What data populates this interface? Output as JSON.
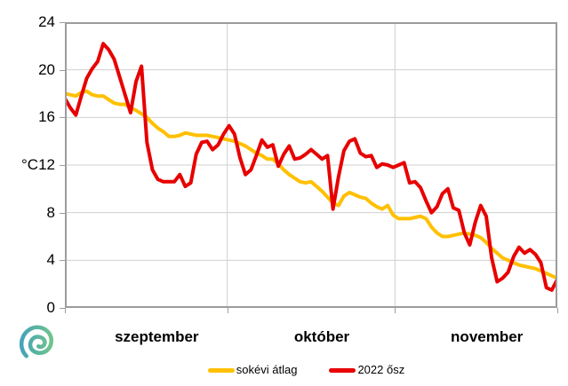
{
  "chart_data": {
    "type": "line",
    "title": "",
    "xlabel": "",
    "ylabel": "°C",
    "ylim": [
      0,
      24
    ],
    "yticks": [
      0,
      4,
      8,
      12,
      16,
      20,
      24
    ],
    "grid": true,
    "legend_position": "bottom-center",
    "x_axis": {
      "months": [
        "szeptember",
        "október",
        "november"
      ],
      "month_days": [
        30,
        31,
        30
      ]
    },
    "series": [
      {
        "name": "sokévi átlag",
        "color": "#FFC000",
        "values": [
          18.0,
          17.9,
          17.8,
          18.1,
          18.2,
          17.9,
          17.8,
          17.8,
          17.5,
          17.2,
          17.1,
          17.1,
          16.8,
          16.6,
          16.3,
          16.0,
          15.5,
          15.1,
          14.8,
          14.4,
          14.4,
          14.5,
          14.7,
          14.6,
          14.5,
          14.5,
          14.5,
          14.4,
          14.3,
          14.2,
          14.1,
          14.0,
          13.8,
          13.6,
          13.3,
          13.0,
          12.8,
          12.5,
          12.5,
          12.1,
          11.6,
          11.2,
          10.9,
          10.6,
          10.5,
          10.6,
          10.2,
          9.8,
          9.3,
          8.8,
          8.6,
          9.4,
          9.7,
          9.5,
          9.3,
          9.2,
          8.8,
          8.5,
          8.3,
          8.6,
          7.8,
          7.5,
          7.5,
          7.5,
          7.6,
          7.7,
          7.5,
          6.8,
          6.3,
          6.0,
          6.0,
          6.1,
          6.2,
          6.3,
          6.2,
          6.1,
          5.9,
          5.5,
          5.0,
          4.6,
          4.2,
          4.0,
          3.8,
          3.6,
          3.5,
          3.4,
          3.3,
          3.1,
          2.9,
          2.7,
          2.5
        ]
      },
      {
        "name": "2022 ősz",
        "color": "#E80000",
        "values": [
          17.6,
          16.8,
          16.2,
          17.8,
          19.3,
          20.1,
          20.7,
          22.2,
          21.7,
          20.9,
          19.4,
          17.9,
          16.4,
          19.0,
          20.3,
          13.9,
          11.6,
          10.8,
          10.6,
          10.6,
          10.6,
          11.2,
          10.2,
          10.5,
          12.9,
          13.9,
          14.0,
          13.3,
          13.7,
          14.6,
          15.3,
          14.6,
          12.6,
          11.2,
          11.6,
          12.8,
          14.1,
          13.5,
          13.7,
          11.9,
          12.9,
          13.6,
          12.5,
          12.6,
          12.9,
          13.3,
          12.9,
          12.5,
          12.8,
          8.3,
          11.0,
          13.2,
          14.0,
          14.2,
          13.0,
          12.7,
          12.8,
          11.8,
          12.1,
          12.0,
          11.8,
          12.0,
          12.2,
          10.5,
          10.6,
          10.1,
          9.0,
          8.0,
          8.5,
          9.6,
          10.0,
          8.4,
          8.2,
          6.3,
          5.3,
          7.2,
          8.6,
          7.7,
          4.2,
          2.2,
          2.5,
          3.0,
          4.3,
          5.1,
          4.6,
          4.9,
          4.5,
          3.8,
          1.7,
          1.5,
          2.4
        ]
      }
    ]
  },
  "axis": {
    "unit_label": "°C"
  },
  "style": {
    "border_color": "#9c9c9c",
    "grid_color": "#d0d0d0",
    "line_width": 4,
    "logo_gradient": [
      "#45A3B8",
      "#6FC48B"
    ]
  }
}
